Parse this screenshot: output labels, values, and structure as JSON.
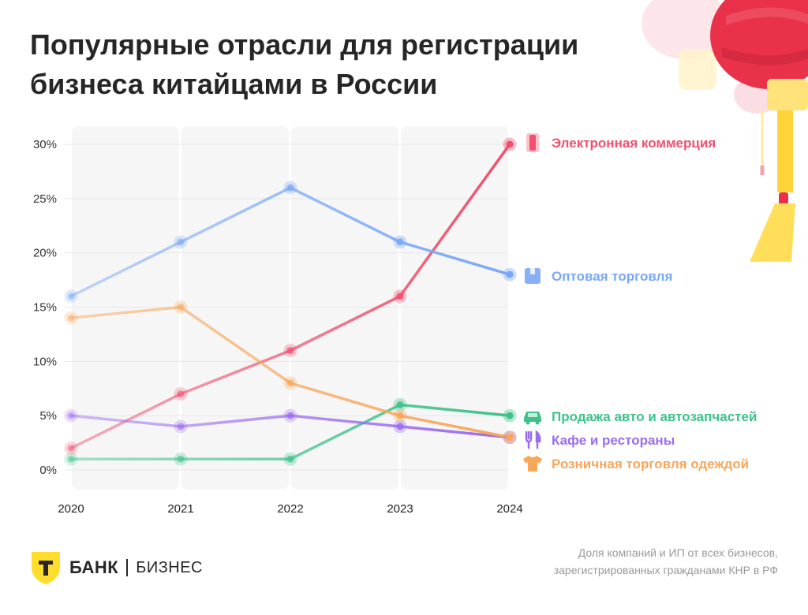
{
  "title": "Популярные отрасли для регистрации бизнеса китайцами в России",
  "footer": {
    "brand": "БАНК",
    "brand_sub": "БИЗНЕС",
    "note_line1": "Доля компаний и ИП от всех бизнесов,",
    "note_line2": "зарегистрированных гражданами КНР в РФ"
  },
  "chart_data": {
    "type": "line",
    "title": "Популярные отрасли для регистрации бизнеса китайцами в России",
    "xlabel": "",
    "ylabel": "",
    "x": [
      "2020",
      "2021",
      "2022",
      "2023",
      "2024"
    ],
    "ylim": [
      0,
      30
    ],
    "yticks": [
      "0%",
      "5%",
      "10%",
      "15%",
      "20%",
      "25%",
      "30%"
    ],
    "grid": true,
    "legend_placement": "right, at line ends",
    "series": [
      {
        "name": "Электронная коммерция",
        "values": [
          2,
          7,
          11,
          16,
          30
        ],
        "color": "#f0506e",
        "icon": "phone-icon"
      },
      {
        "name": "Оптовая торговля",
        "values": [
          16,
          21,
          26,
          21,
          18
        ],
        "color": "#7aa7f5",
        "icon": "box-icon"
      },
      {
        "name": "Продажа авто и автозапчастей",
        "values": [
          1,
          1,
          1,
          6,
          5
        ],
        "color": "#3fc28a",
        "icon": "car-icon"
      },
      {
        "name": "Кафе и рестораны",
        "values": [
          5,
          4,
          5,
          4,
          3
        ],
        "color": "#9b6cf0",
        "icon": "fork-knife-icon"
      },
      {
        "name": "Розничная торговля одеждой",
        "values": [
          14,
          15,
          8,
          5,
          3
        ],
        "color": "#f7a65a",
        "icon": "tshirt-icon"
      }
    ]
  }
}
